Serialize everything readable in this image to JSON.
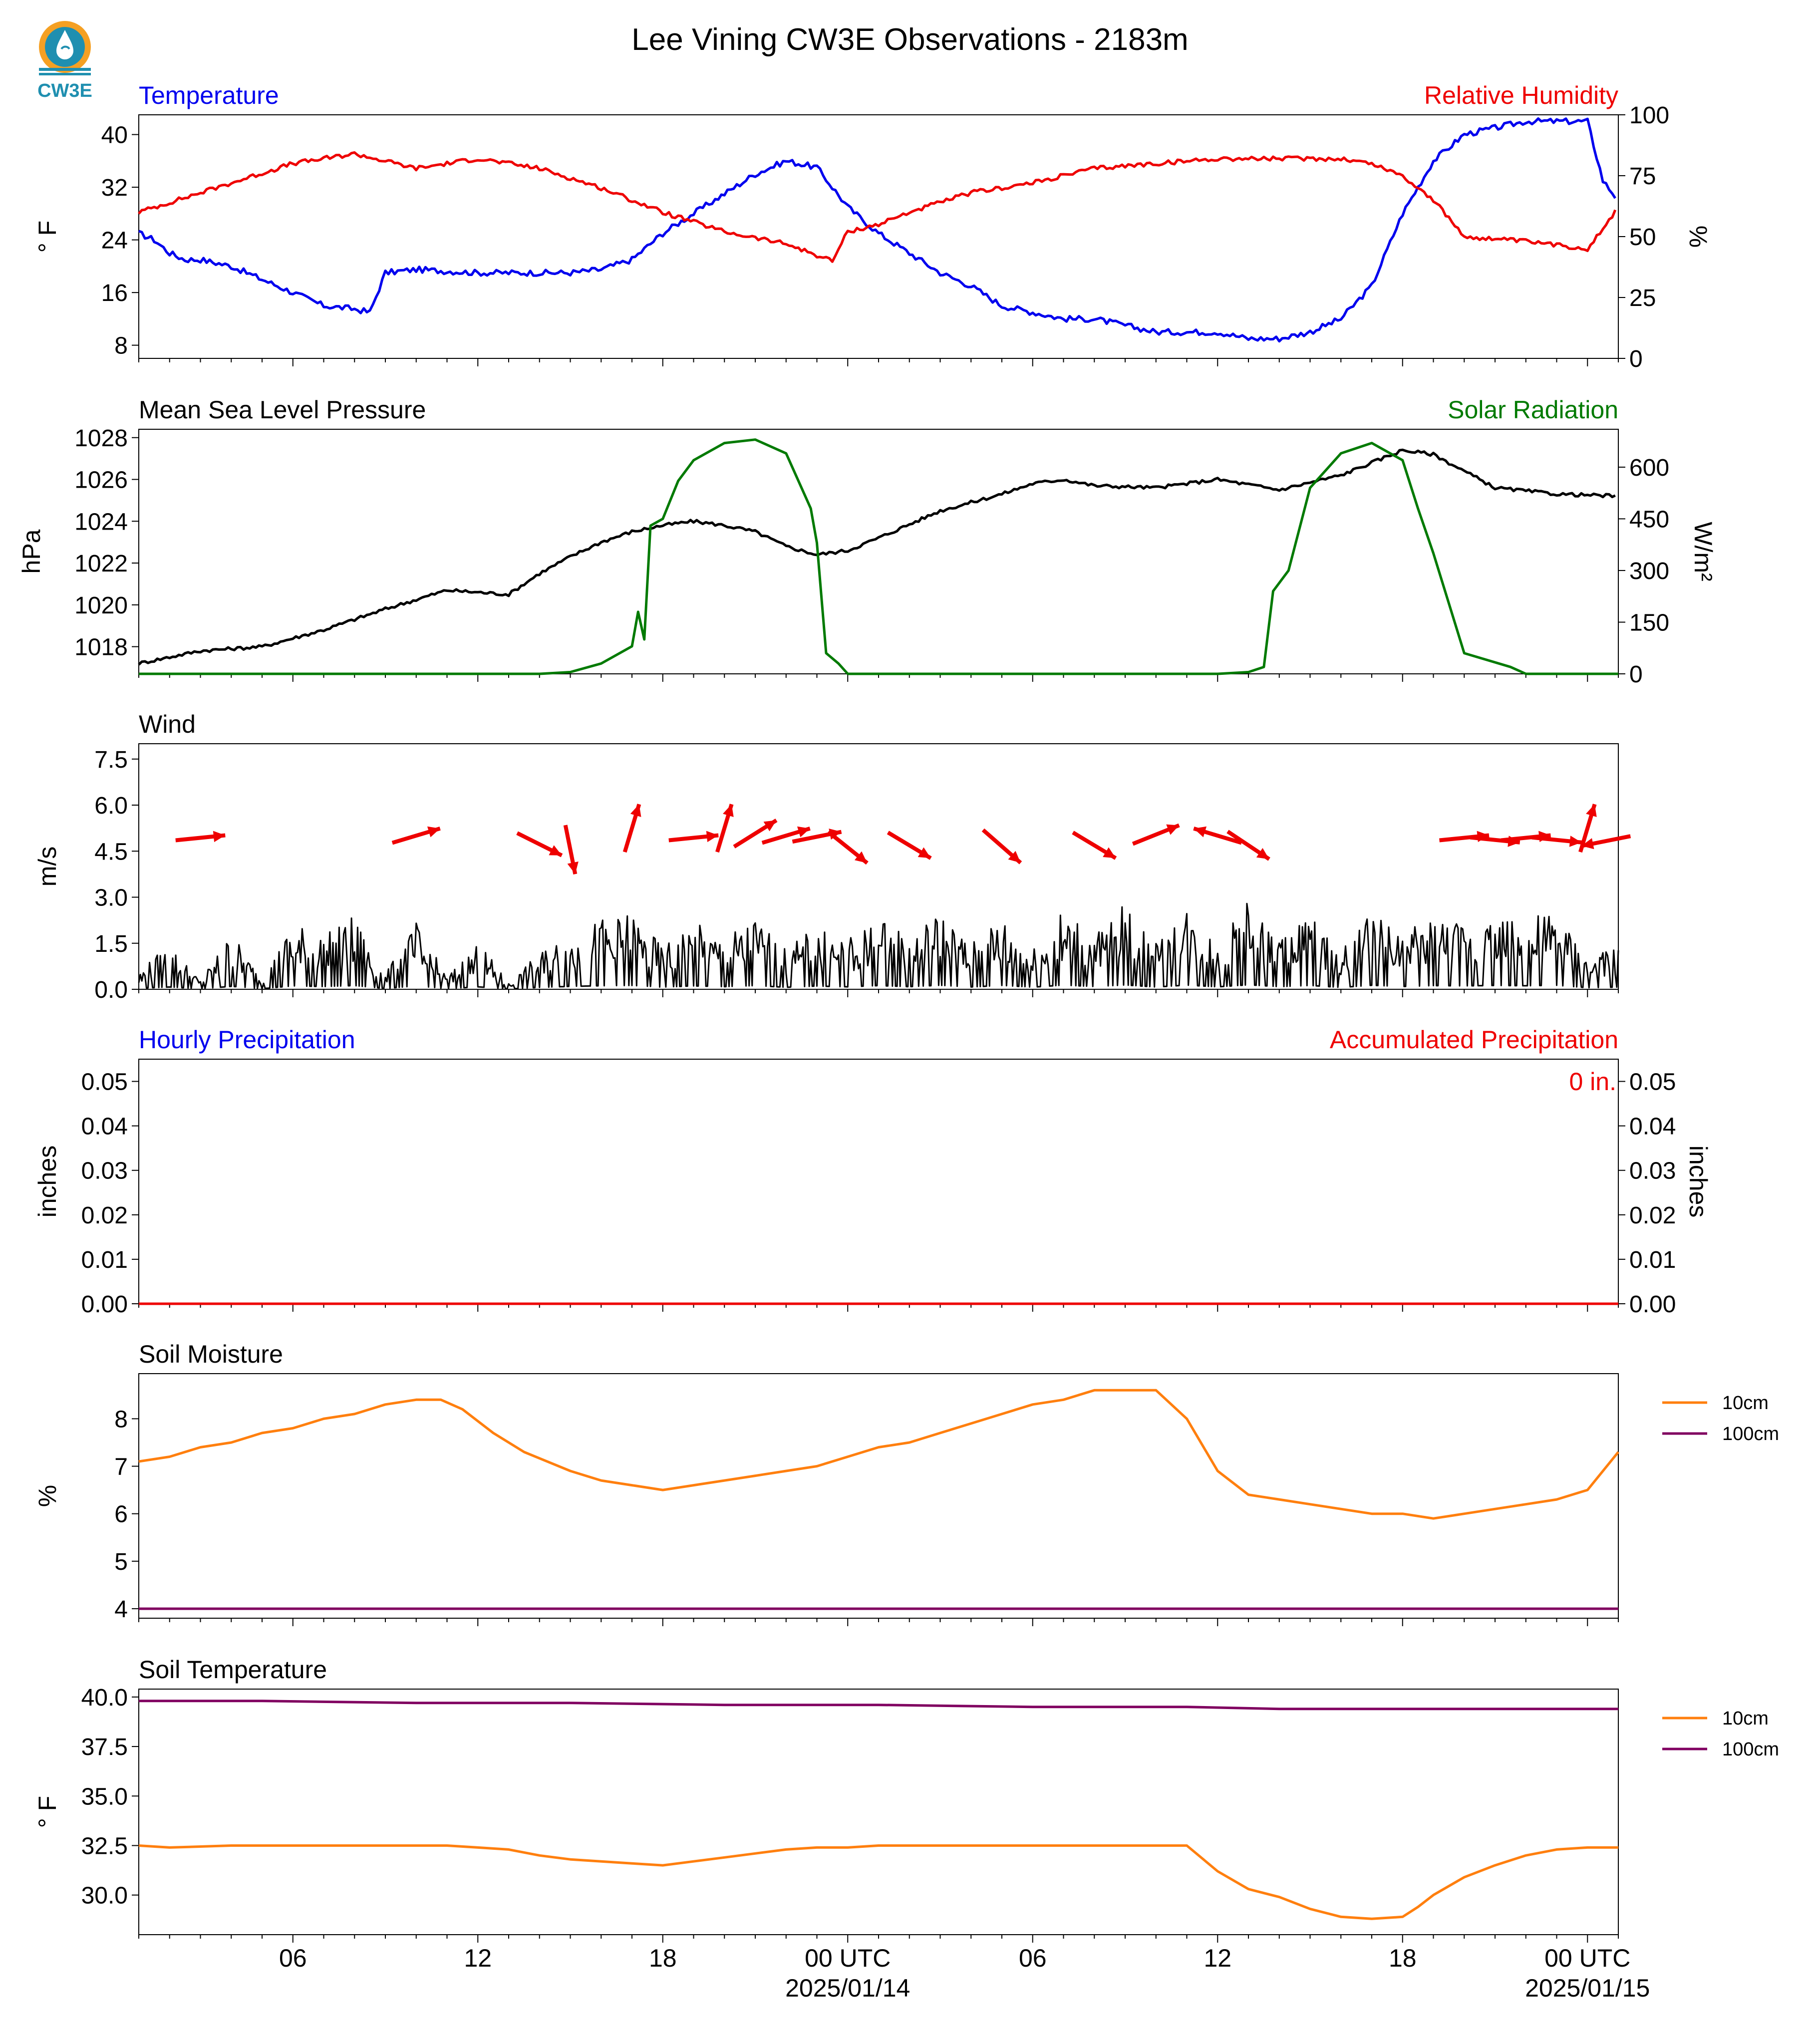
{
  "page": {
    "title": "Lee Vining CW3E Observations - 2183m",
    "logo_text": "CW3E",
    "colors": {
      "blue": "#0000ee",
      "red": "#ee0000",
      "green": "#007a00",
      "black": "#000000",
      "orange": "#ff7f0e",
      "purple": "#800060",
      "logo_teal": "#1f8fb0",
      "logo_orange": "#f5a023"
    }
  },
  "x_axis": {
    "ticks": [
      {
        "hour": 6,
        "label": "06",
        "sub": ""
      },
      {
        "hour": 12,
        "label": "12",
        "sub": ""
      },
      {
        "hour": 18,
        "label": "18",
        "sub": ""
      },
      {
        "hour": 24,
        "label": "00 UTC",
        "sub": "2025/01/14"
      },
      {
        "hour": 30,
        "label": "06",
        "sub": ""
      },
      {
        "hour": 36,
        "label": "12",
        "sub": ""
      },
      {
        "hour": 42,
        "label": "18",
        "sub": ""
      },
      {
        "hour": 48,
        "label": "00 UTC",
        "sub": "2025/01/15"
      }
    ],
    "range_hours": [
      1,
      49
    ]
  },
  "chart_data": [
    {
      "type": "line",
      "left_title": "Temperature",
      "right_title": "Relative Humidity",
      "ylabel": "° F",
      "ylabel_right": "%",
      "yticks": [
        "40",
        "32",
        "24",
        "16",
        "8"
      ],
      "yticks_right": [
        "100",
        "75",
        "50",
        "25",
        "0"
      ],
      "ylim": [
        6,
        43
      ],
      "ylim_right": [
        0,
        100
      ],
      "series": [
        {
          "axis": "left",
          "x": [
            1,
            1.5,
            2,
            2.5,
            3,
            4,
            5,
            6,
            7,
            8,
            8.5,
            9,
            10,
            12,
            14,
            15,
            16,
            17,
            18,
            19,
            20,
            21,
            22,
            23,
            24,
            25,
            26,
            27,
            28,
            29,
            30,
            31,
            32,
            33,
            34,
            35,
            36,
            37,
            38,
            39,
            40,
            41,
            42,
            43,
            44,
            45,
            46,
            47,
            48,
            48.5,
            49
          ],
          "y": [
            25,
            24,
            22,
            21,
            21,
            20,
            18,
            16,
            14,
            13.5,
            13,
            19,
            19.5,
            19,
            19,
            19,
            19.5,
            21,
            25,
            28,
            31,
            34,
            36,
            35,
            29,
            25,
            22,
            19,
            17,
            14,
            13,
            12,
            12,
            11,
            10,
            10,
            10,
            9,
            9,
            10,
            12,
            17,
            28,
            36,
            40,
            41,
            42,
            42,
            42,
            33,
            30
          ]
        },
        {
          "axis": "right",
          "x": [
            1,
            2,
            4,
            6,
            8,
            10,
            12,
            14,
            16,
            18,
            20,
            22,
            23.5,
            24,
            25,
            26,
            28,
            30,
            32,
            34,
            36,
            38,
            40,
            41,
            42,
            43,
            44,
            46,
            48,
            49
          ],
          "y": [
            60,
            64,
            72,
            80,
            84,
            78,
            82,
            78,
            70,
            60,
            52,
            47,
            40,
            52,
            55,
            60,
            68,
            72,
            78,
            80,
            82,
            82,
            82,
            80,
            75,
            65,
            50,
            48,
            45,
            62
          ]
        }
      ]
    },
    {
      "type": "line",
      "left_title": "Mean Sea Level Pressure",
      "right_title": "Solar Radiation",
      "ylabel": "hPa",
      "ylabel_right": "W/m²",
      "yticks": [
        "1028",
        "1026",
        "1024",
        "1022",
        "1020",
        "1018"
      ],
      "yticks_right": [
        "600",
        "450",
        "300",
        "150",
        "0"
      ],
      "ylim": [
        1016.7,
        1028.4
      ],
      "ylim_right": [
        0,
        710
      ],
      "series": [
        {
          "axis": "left",
          "x": [
            1,
            3,
            5,
            7,
            9,
            11,
            13,
            14,
            15,
            16,
            17,
            18,
            19,
            20,
            21,
            22,
            23,
            24,
            25,
            27,
            29,
            30,
            31,
            32,
            34,
            36,
            38,
            40,
            42,
            43,
            45,
            47,
            49
          ],
          "y": [
            1017.2,
            1017.8,
            1018,
            1018.8,
            1019.8,
            1020.7,
            1020.5,
            1021.5,
            1022.3,
            1023,
            1023.5,
            1023.8,
            1024,
            1023.8,
            1023.5,
            1022.8,
            1022.4,
            1022.6,
            1023.2,
            1024.5,
            1025.3,
            1025.8,
            1026,
            1025.7,
            1025.6,
            1026,
            1025.5,
            1026.2,
            1027.4,
            1027.2,
            1025.6,
            1025.3,
            1025.2
          ]
        },
        {
          "axis": "right",
          "x": [
            1,
            14,
            15,
            16,
            17,
            17.2,
            17.4,
            17.6,
            18,
            18.5,
            19,
            20,
            21,
            22,
            22.8,
            23,
            23.3,
            23.7,
            24,
            25,
            35,
            36,
            37,
            37.5,
            37.8,
            38.3,
            39,
            40,
            41,
            42,
            42.5,
            43,
            44,
            45.5,
            46,
            46.1,
            46.4,
            46.6,
            47,
            48,
            49
          ],
          "y": [
            0,
            0,
            5,
            30,
            80,
            180,
            100,
            430,
            450,
            560,
            620,
            670,
            680,
            640,
            480,
            380,
            60,
            30,
            0,
            0,
            0,
            0,
            5,
            20,
            240,
            300,
            540,
            640,
            670,
            620,
            480,
            350,
            60,
            20,
            0,
            0,
            0,
            0,
            0,
            0,
            0
          ]
        }
      ]
    },
    {
      "type": "line",
      "left_title": "Wind",
      "ylabel": "m/s",
      "yticks": [
        "7.5",
        "6.0",
        "4.5",
        "3.0",
        "1.5",
        "0.0"
      ],
      "ylim": [
        0,
        8
      ],
      "series": [
        {
          "axis": "left",
          "x": [
            1,
            2,
            3,
            4,
            5,
            6,
            7,
            8,
            9,
            10,
            11,
            12,
            13,
            14,
            15,
            16,
            17,
            18,
            19,
            20,
            21,
            22,
            23,
            24,
            25,
            26,
            27,
            28,
            29,
            30,
            31,
            32,
            33,
            34,
            35,
            36,
            37,
            38,
            39,
            40,
            41,
            42,
            43,
            44,
            45,
            46,
            47,
            48,
            49
          ],
          "y": [
            0.6,
            1.5,
            0.3,
            1.9,
            0.4,
            2.2,
            1.8,
            2.4,
            0.5,
            2.2,
            0.4,
            1.6,
            0.2,
            1.2,
            1.9,
            2.3,
            2.5,
            1.4,
            2.2,
            1.7,
            2.4,
            1.3,
            2.1,
            1.6,
            2.4,
            1.7,
            2.6,
            1.5,
            2.5,
            1.4,
            2.7,
            1.8,
            2.8,
            1.5,
            2.7,
            1.6,
            2.9,
            1.7,
            2.5,
            1.2,
            2.6,
            1.8,
            2.4,
            2.2,
            2.5,
            2.3,
            2.6,
            1.0,
            1.4
          ]
        }
      ],
      "barbs": [
        {
          "hour": 3,
          "u": 1,
          "v": 0.1
        },
        {
          "hour": 10,
          "u": 1,
          "v": 0.3
        },
        {
          "hour": 14,
          "u": 1,
          "v": -0.5
        },
        {
          "hour": 15,
          "u": 0.2,
          "v": -1
        },
        {
          "hour": 17,
          "u": 0.3,
          "v": 1
        },
        {
          "hour": 19,
          "u": 1,
          "v": 0.1
        },
        {
          "hour": 20,
          "u": 0.3,
          "v": 1
        },
        {
          "hour": 21,
          "u": 0.8,
          "v": 0.5
        },
        {
          "hour": 22,
          "u": 1,
          "v": 0.3
        },
        {
          "hour": 23,
          "u": 1,
          "v": 0.2
        },
        {
          "hour": 24,
          "u": 1,
          "v": -0.8
        },
        {
          "hour": 26,
          "u": 1,
          "v": -0.6
        },
        {
          "hour": 29,
          "u": 0.8,
          "v": -0.7
        },
        {
          "hour": 32,
          "u": 1,
          "v": -0.6
        },
        {
          "hour": 34,
          "u": 1,
          "v": 0.4
        },
        {
          "hour": 36,
          "u": -1,
          "v": 0.3
        },
        {
          "hour": 37,
          "u": 0.9,
          "v": -0.6
        },
        {
          "hour": 44,
          "u": 1,
          "v": 0.1
        },
        {
          "hour": 45,
          "u": 1,
          "v": -0.1
        },
        {
          "hour": 46,
          "u": 1,
          "v": 0.1
        },
        {
          "hour": 47,
          "u": 1,
          "v": -0.1
        },
        {
          "hour": 48,
          "u": 0.3,
          "v": 1
        },
        {
          "hour": 48.6,
          "u": -1,
          "v": -0.2
        }
      ]
    },
    {
      "type": "line",
      "left_title": "Hourly Precipitation",
      "right_title": "Accumulated Precipitation",
      "annotation": "0 in.",
      "ylabel": "inches",
      "ylabel_right": "inches",
      "yticks": [
        "0.05",
        "0.04",
        "0.03",
        "0.02",
        "0.01",
        "0.00"
      ],
      "yticks_right": [
        "0.05",
        "0.04",
        "0.03",
        "0.02",
        "0.01",
        "0.00"
      ],
      "ylim": [
        0,
        0.055
      ],
      "series": [
        {
          "axis": "left",
          "x": [
            1,
            49
          ],
          "y": [
            0,
            0
          ]
        }
      ]
    },
    {
      "type": "line",
      "left_title": "Soil Moisture",
      "ylabel": "%",
      "yticks": [
        "8",
        "7",
        "6",
        "5",
        "4"
      ],
      "ylim": [
        3.8,
        8.95
      ],
      "series": [
        {
          "name": "10cm",
          "axis": "left",
          "x": [
            1,
            2,
            3,
            4,
            5,
            6,
            7,
            8,
            9,
            10,
            10.8,
            11.5,
            12.5,
            13.5,
            15,
            16,
            17,
            18,
            19,
            20,
            21,
            22,
            23,
            24,
            25,
            26,
            27,
            28,
            29,
            30,
            31,
            32,
            33,
            34,
            35,
            36,
            37,
            38,
            39,
            40,
            41,
            42,
            43,
            44,
            45,
            46,
            47,
            48,
            49
          ],
          "y": [
            7.1,
            7.2,
            7.4,
            7.5,
            7.7,
            7.8,
            8.0,
            8.1,
            8.3,
            8.4,
            8.4,
            8.2,
            7.7,
            7.3,
            6.9,
            6.7,
            6.6,
            6.5,
            6.6,
            6.7,
            6.8,
            6.9,
            7.0,
            7.2,
            7.4,
            7.5,
            7.7,
            7.9,
            8.1,
            8.3,
            8.4,
            8.6,
            8.6,
            8.6,
            8.0,
            6.9,
            6.4,
            6.3,
            6.2,
            6.1,
            6.0,
            6.0,
            5.9,
            6.0,
            6.1,
            6.2,
            6.3,
            6.5,
            7.3
          ]
        },
        {
          "name": "100cm",
          "axis": "left",
          "x": [
            1,
            49
          ],
          "y": [
            4,
            4
          ]
        }
      ]
    },
    {
      "type": "line",
      "left_title": "Soil Temperature",
      "ylabel": "° F",
      "yticks": [
        "40.0",
        "37.5",
        "35.0",
        "32.5",
        "30.0"
      ],
      "ylim": [
        28.0,
        40.4
      ],
      "series": [
        {
          "name": "10cm",
          "axis": "left",
          "x": [
            1,
            2,
            4,
            6,
            8,
            10,
            11,
            12,
            13,
            14,
            15,
            16,
            17,
            18,
            19,
            20,
            21,
            22,
            23,
            24,
            25,
            26,
            27,
            28,
            29,
            30,
            32,
            33.5,
            35,
            36,
            37,
            38,
            39,
            40,
            41,
            42,
            42.5,
            43,
            44,
            45,
            46,
            47,
            48,
            49
          ],
          "y": [
            32.5,
            32.4,
            32.5,
            32.5,
            32.5,
            32.5,
            32.5,
            32.4,
            32.3,
            32.0,
            31.8,
            31.7,
            31.6,
            31.5,
            31.7,
            31.9,
            32.1,
            32.3,
            32.4,
            32.4,
            32.5,
            32.5,
            32.5,
            32.5,
            32.5,
            32.5,
            32.5,
            32.5,
            32.5,
            31.2,
            30.3,
            29.9,
            29.3,
            28.9,
            28.8,
            28.9,
            29.4,
            30.0,
            30.9,
            31.5,
            32.0,
            32.3,
            32.4,
            32.4
          ]
        },
        {
          "name": "100cm",
          "axis": "left",
          "x": [
            1,
            5,
            10,
            15,
            20,
            25,
            30,
            35,
            38,
            40,
            45,
            49
          ],
          "y": [
            39.8,
            39.8,
            39.7,
            39.7,
            39.6,
            39.6,
            39.5,
            39.5,
            39.4,
            39.4,
            39.4,
            39.4
          ]
        }
      ]
    }
  ]
}
